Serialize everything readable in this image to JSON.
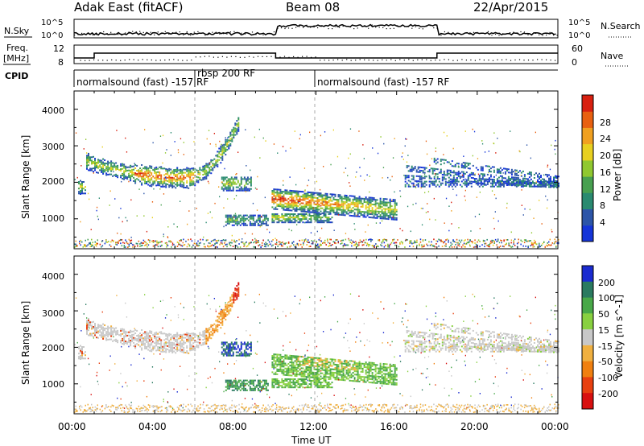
{
  "header": {
    "station": "Adak East (fitACF)",
    "beam": "Beam 08",
    "date": "22/Apr/2015"
  },
  "summary": {
    "nsky_label": "N.Sky",
    "nsearch_label": "N.Search",
    "noise_ticks": [
      "10^5",
      "10^0"
    ],
    "freq_label_line1": "Freq.",
    "freq_label_line2": "[MHz]",
    "freq_ticks": [
      "12",
      "8"
    ],
    "nave_label": "Nave",
    "nave_ticks": [
      "60",
      "0"
    ],
    "cpid_label": "CPID",
    "cpid_segments": [
      {
        "label": "normalsound (fast) -157 RF",
        "start_hour": 0,
        "end_hour": 6
      },
      {
        "label": "rbsp 200 RF",
        "start_hour": 6,
        "end_hour": 12
      },
      {
        "label": "normalsound (fast) -157 RF",
        "start_hour": 12,
        "end_hour": 24
      }
    ]
  },
  "chart_data": [
    {
      "type": "heatmap",
      "name": "power",
      "ylabel": "Slant Range [km]",
      "xlabel": "Time UT",
      "xlim_hours": [
        0,
        24
      ],
      "ylim": [
        180,
        4500
      ],
      "yticks": [
        "1000",
        "2000",
        "3000",
        "4000"
      ],
      "xticks": [
        "00:00",
        "04:00",
        "08:00",
        "12:00",
        "16:00",
        "20:00",
        "00:00"
      ],
      "colorbar": {
        "label": "Power [dB]",
        "tick_labels": [
          "4",
          "8",
          "12",
          "16",
          "20",
          "24",
          "28"
        ],
        "colors": [
          "#1535d8",
          "#2c55a8",
          "#2a8a70",
          "#48a050",
          "#90c830",
          "#e8d020",
          "#f0a020",
          "#e86010",
          "#d82010"
        ]
      },
      "regions": [
        {
          "desc": "arc",
          "t0": 0.0,
          "t1": 8.2,
          "shape": "arc"
        },
        {
          "desc": "mid-band",
          "t0": 7.3,
          "t1": 8.8,
          "r0": 1750,
          "r1": 2150
        },
        {
          "desc": "low-band",
          "t0": 7.5,
          "t1": 9.5,
          "r0": 800,
          "r1": 1100
        },
        {
          "desc": "main-band",
          "t0": 9.8,
          "t1": 16.0,
          "r0": 1250,
          "r1": 1800
        },
        {
          "desc": "lower-band",
          "t0": 9.8,
          "t1": 12.8,
          "r0": 900,
          "r1": 1150
        },
        {
          "desc": "evening",
          "t0": 16.3,
          "t1": 24.0,
          "r0": 1700,
          "r1": 2900
        }
      ]
    },
    {
      "type": "heatmap",
      "name": "velocity",
      "ylabel": "Slant Range [km]",
      "xlabel": "Time UT",
      "xlim_hours": [
        0,
        24
      ],
      "ylim": [
        180,
        4500
      ],
      "yticks": [
        "1000",
        "2000",
        "3000",
        "4000"
      ],
      "xticks": [
        "00:00",
        "04:00",
        "08:00",
        "12:00",
        "16:00",
        "20:00",
        "00:00"
      ],
      "colorbar": {
        "label": "Velocity [m s^-1]",
        "tick_labels": [
          "200",
          "100",
          "50",
          "15",
          "-15",
          "-50",
          "-100",
          "-200"
        ],
        "colors": [
          "#1a2bd0",
          "#2a7a60",
          "#48a848",
          "#88d040",
          "#c8c8c8",
          "#f0b040",
          "#f08010",
          "#e84010",
          "#d81010"
        ]
      }
    }
  ],
  "axes": {
    "xlabel": "Time UT"
  }
}
